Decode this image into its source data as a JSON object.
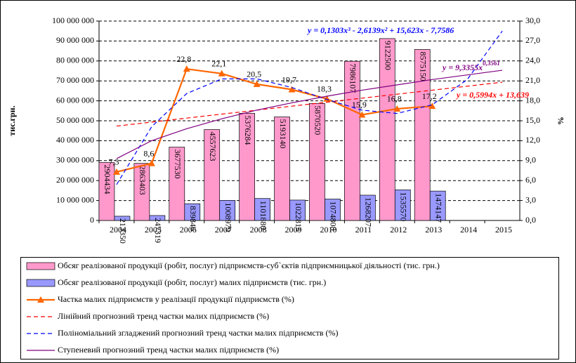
{
  "chart_data": {
    "type": "bar",
    "categories": [
      "2004",
      "2005",
      "2006",
      "2007",
      "2008",
      "2009",
      "2010",
      "2011",
      "2012",
      "2013",
      "2014",
      "2015"
    ],
    "series": [
      {
        "name": "Обсяг реалізованої продукції (робіт, послуг) підприємств-суб`єктів підприємницької діяльності (тис. грн.)",
        "kind": "bar",
        "color": "#ff99cc",
        "values": [
          29044340,
          28634030,
          36775300,
          45576230,
          53762840,
          51931400,
          58705200,
          79861070,
          91225000,
          85751500,
          null,
          null
        ],
        "value_labels": [
          "2904434",
          "2863403",
          "3677530",
          "4557623",
          "5376284",
          "5193140",
          "5870520",
          "7986107",
          "9122500",
          "8575150",
          null,
          null
        ]
      },
      {
        "name": "Обсяг реалізованої продукції (робіт, послуг) малих підприємств  (тис. грн.)",
        "kind": "bar",
        "color": "#9999ff",
        "values": [
          2133500,
          2473190,
          8398460,
          10089790,
          11018800,
          10228150,
          10748080,
          12682070,
          15355700,
          14741470,
          null,
          null
        ],
        "value_labels": [
          "213350",
          "247319",
          "839846",
          "1008979",
          "1101880",
          "1022815",
          "1074808",
          "1268207",
          "1535570",
          "1474147",
          null,
          null
        ]
      },
      {
        "name": "Частка малих підприємств у реалізації продукції підприємств (%)",
        "kind": "line",
        "axis": "y2",
        "color": "#ff6600",
        "values": [
          7.3,
          8.6,
          22.8,
          22.1,
          20.5,
          19.7,
          18.3,
          15.9,
          16.8,
          17.2,
          null,
          null
        ],
        "value_labels": [
          "7,3",
          "8,6",
          "22,8",
          "22,1",
          "20,5",
          "19,7",
          "18,3",
          "15,9",
          "16,8",
          "17,2",
          null,
          null
        ]
      },
      {
        "name": "Лінійний прогнозний тренд частки малих підприємств (%)",
        "kind": "trend",
        "axis": "y2",
        "color": "#ff0000",
        "dash": true,
        "values": [
          14.2,
          14.8,
          15.4,
          16.0,
          16.6,
          17.2,
          17.8,
          18.4,
          19.0,
          19.6,
          20.2,
          20.8
        ]
      },
      {
        "name": "Поліноміальний згладжений прогнозний тренд частки малих підприємств (%)",
        "kind": "trend",
        "axis": "y2",
        "color": "#0000ff",
        "dash": true,
        "values": [
          5.4,
          14.1,
          19.1,
          21.3,
          21.3,
          20.0,
          18.2,
          16.6,
          16.1,
          17.4,
          21.2,
          28.5
        ]
      },
      {
        "name": "Ступеневий прогнозний тренд частки малих підприємств (%)",
        "kind": "trend",
        "axis": "y2",
        "color": "#800080",
        "dash": false,
        "values": [
          9.3,
          12.0,
          13.8,
          15.3,
          16.6,
          17.7,
          18.7,
          19.6,
          20.4,
          21.2,
          21.9,
          22.6
        ]
      }
    ],
    "annotations": [
      {
        "text": "y = 0,1303x³ - 2,6139x² + 15,623x - 7,7586",
        "color": "#0000ff"
      },
      {
        "text": "y = 9,3355x",
        "sup": "0,3561",
        "color": "#800080"
      },
      {
        "text": "y = 0,5994x + 13,639",
        "color": "#ff0000"
      }
    ],
    "ylabel": "тис.грн.",
    "y2label": "%",
    "ylim": [
      0,
      100000000
    ],
    "yticks": [
      {
        "value": 0,
        "label": "0"
      },
      {
        "value": 10000000,
        "label": "10 000 000"
      },
      {
        "value": 20000000,
        "label": "20 000 000"
      },
      {
        "value": 30000000,
        "label": "30 000 000"
      },
      {
        "value": 40000000,
        "label": "40 000 000"
      },
      {
        "value": 50000000,
        "label": "50 000 000"
      },
      {
        "value": 60000000,
        "label": "60 000 000"
      },
      {
        "value": 70000000,
        "label": "70 000 000"
      },
      {
        "value": 80000000,
        "label": "80 000 000"
      },
      {
        "value": 90000000,
        "label": "90 000 000"
      },
      {
        "value": 100000000,
        "label": "100 000 000"
      }
    ],
    "y2lim": [
      0,
      30
    ],
    "y2ticks": [
      {
        "value": 0,
        "label": "0,0"
      },
      {
        "value": 3,
        "label": "3,0"
      },
      {
        "value": 6,
        "label": "6,0"
      },
      {
        "value": 9,
        "label": "9,0"
      },
      {
        "value": 12,
        "label": "12,0"
      },
      {
        "value": 15,
        "label": "15,0"
      },
      {
        "value": 18,
        "label": "18,0"
      },
      {
        "value": 21,
        "label": "21,0"
      },
      {
        "value": 24,
        "label": "24,0"
      },
      {
        "value": 27,
        "label": "27,0"
      },
      {
        "value": 30,
        "label": "30,0"
      }
    ],
    "grid": true
  }
}
